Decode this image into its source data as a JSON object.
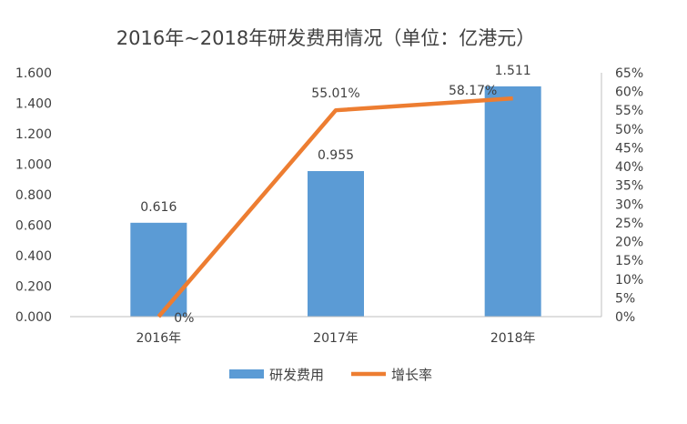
{
  "chart_data": {
    "type": "bar",
    "title": "2016年~2018年研发费用情况（单位：亿港元）",
    "categories": [
      "2016年",
      "2017年",
      "2018年"
    ],
    "series": [
      {
        "name": "研发费用",
        "type": "bar",
        "axis": "left",
        "values": [
          0.616,
          0.955,
          1.511
        ],
        "labels": [
          "0.616",
          "0.955",
          "1.511"
        ],
        "color": "#5B9BD5"
      },
      {
        "name": "增长率",
        "type": "line",
        "axis": "right",
        "values": [
          0,
          55.01,
          58.17
        ],
        "labels": [
          "0%",
          "55.01%",
          "58.17%"
        ],
        "color": "#ED7D31"
      }
    ],
    "y_left": {
      "ylim": [
        0,
        1.6
      ],
      "ticks": [
        "0.000",
        "0.200",
        "0.400",
        "0.600",
        "0.800",
        "1.000",
        "1.200",
        "1.400",
        "1.600"
      ]
    },
    "y_right": {
      "ylim": [
        0,
        65
      ],
      "ticks": [
        "0%",
        "5%",
        "10%",
        "15%",
        "20%",
        "25%",
        "30%",
        "35%",
        "40%",
        "45%",
        "50%",
        "55%",
        "60%",
        "65%"
      ]
    },
    "legend": {
      "position": "bottom"
    },
    "grid": false
  }
}
